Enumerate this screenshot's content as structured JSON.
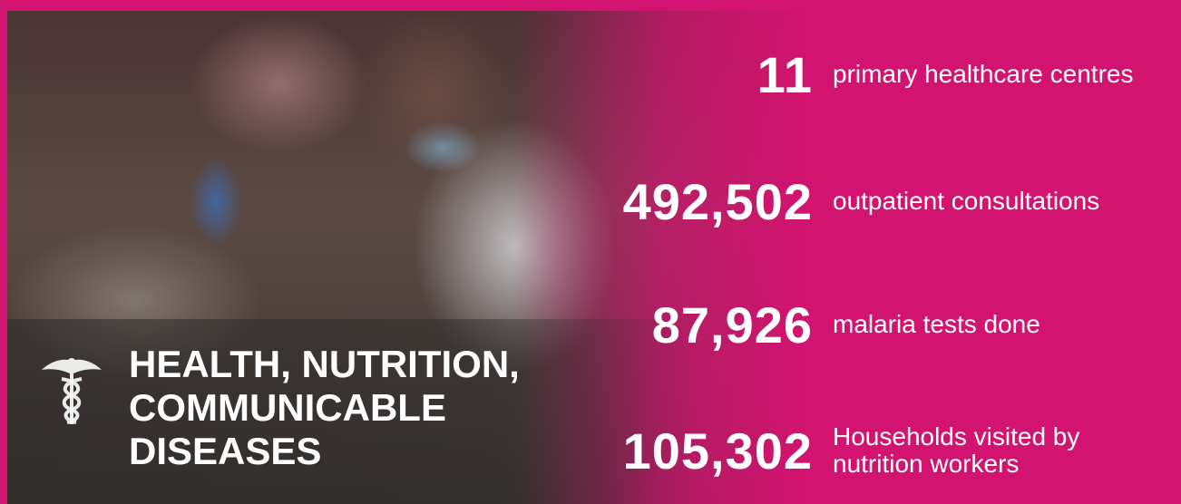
{
  "title": "HEALTH, NUTRITION, COMMUNICABLE DISEASES",
  "stats": [
    {
      "number": "11",
      "label": "primary healthcare centres"
    },
    {
      "number": "492,502",
      "label": "outpatient consultations"
    },
    {
      "number": "87,926",
      "label": "malaria tests done"
    },
    {
      "number": "105,302",
      "label": "Households visited by nutrition workers"
    }
  ]
}
